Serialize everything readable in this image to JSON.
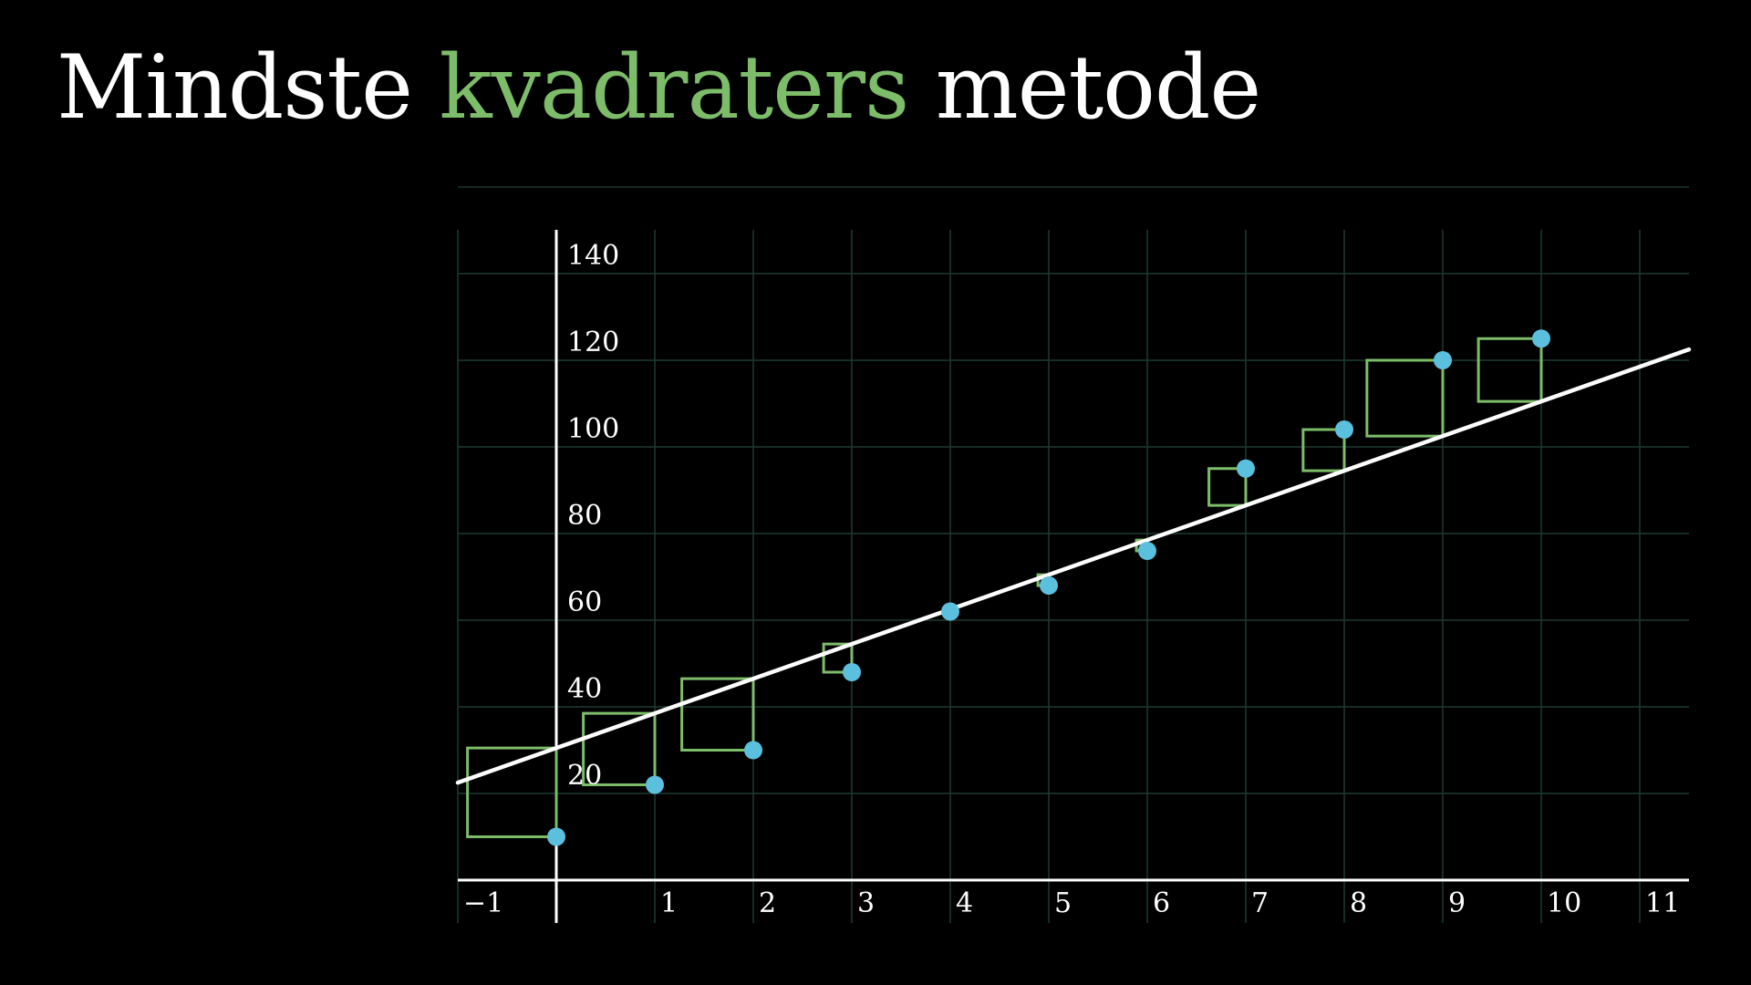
{
  "title": {
    "part1": "Mindste ",
    "part2": "kvadraters",
    "part3": " metode"
  },
  "colors": {
    "background": "#000000",
    "text": "#ffffff",
    "highlight": "#7dbd6a",
    "points": "#5bc0de",
    "squares": "#7dbd6a",
    "grid": "#1e3a30",
    "axes": "#ffffff",
    "fit_line": "#ffffff"
  },
  "chart_data": {
    "type": "scatter",
    "title": "Mindste kvadraters metode",
    "xlabel": "",
    "ylabel": "",
    "xlim": [
      -1,
      11.5
    ],
    "ylim": [
      0,
      150
    ],
    "grid": true,
    "x_ticks": [
      -1,
      1,
      2,
      3,
      4,
      5,
      6,
      7,
      8,
      9,
      10,
      11
    ],
    "x_tick_labels": [
      "−1",
      "1",
      "2",
      "3",
      "4",
      "5",
      "6",
      "7",
      "8",
      "9",
      "10",
      "11"
    ],
    "y_ticks": [
      20,
      40,
      60,
      80,
      100,
      120,
      140
    ],
    "y_tick_labels": [
      "20",
      "40",
      "60",
      "80",
      "100",
      "120",
      "140"
    ],
    "points": {
      "x": [
        0,
        1,
        2,
        3,
        4,
        5,
        6,
        7,
        8,
        9,
        10
      ],
      "y": [
        10,
        22,
        30,
        48,
        62,
        68,
        76,
        95,
        104,
        120,
        125
      ]
    },
    "fit_line": {
      "slope": 8.0,
      "intercept": 30.5,
      "x_range": [
        -1,
        11.5
      ]
    },
    "residual_squares": true
  }
}
